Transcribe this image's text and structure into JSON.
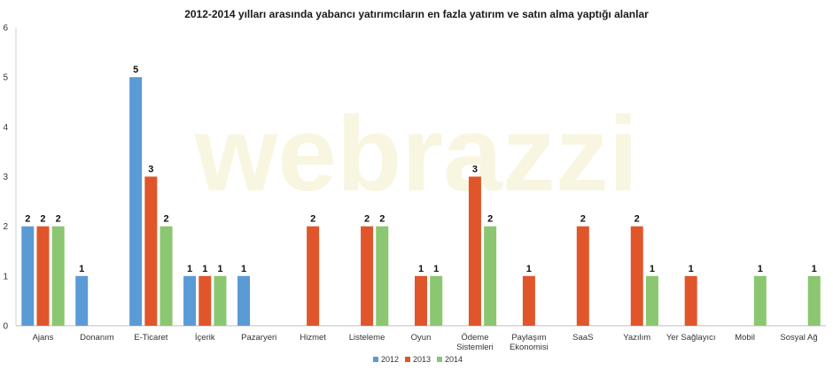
{
  "chart_data": {
    "type": "bar",
    "title": "2012-2014 yılları arasında yabancı yatırımcıların en fazla yatırım ve satın alma yaptığı alanlar",
    "categories": [
      "Ajans",
      "Donanım",
      "E-Ticaret",
      "İçerik",
      "Pazaryeri",
      "Hizmet",
      "Listeleme",
      "Oyun",
      "Ödeme\nSistemleri",
      "Paylaşım\nEkonomisi",
      "SaaS",
      "Yazılım",
      "Yer Sağlayıcı",
      "Mobil",
      "Sosyal Ağ"
    ],
    "series": [
      {
        "name": "2012",
        "color": "#5b9bd5",
        "values": [
          2,
          1,
          5,
          1,
          1,
          0,
          0,
          0,
          0,
          0,
          0,
          0,
          0,
          0,
          0
        ]
      },
      {
        "name": "2013",
        "color": "#e0562a",
        "values": [
          2,
          0,
          3,
          1,
          0,
          2,
          2,
          1,
          3,
          1,
          2,
          2,
          1,
          0,
          0
        ]
      },
      {
        "name": "2014",
        "color": "#8bc671",
        "values": [
          2,
          0,
          2,
          1,
          0,
          0,
          2,
          1,
          2,
          0,
          0,
          1,
          0,
          1,
          1
        ]
      }
    ],
    "ylim": [
      0,
      6
    ],
    "yticks": [
      0,
      1,
      2,
      3,
      4,
      5,
      6
    ],
    "grid": false,
    "legend_position": "bottom-center",
    "xlabel": "",
    "ylabel": "",
    "watermark": "webrazzi"
  }
}
